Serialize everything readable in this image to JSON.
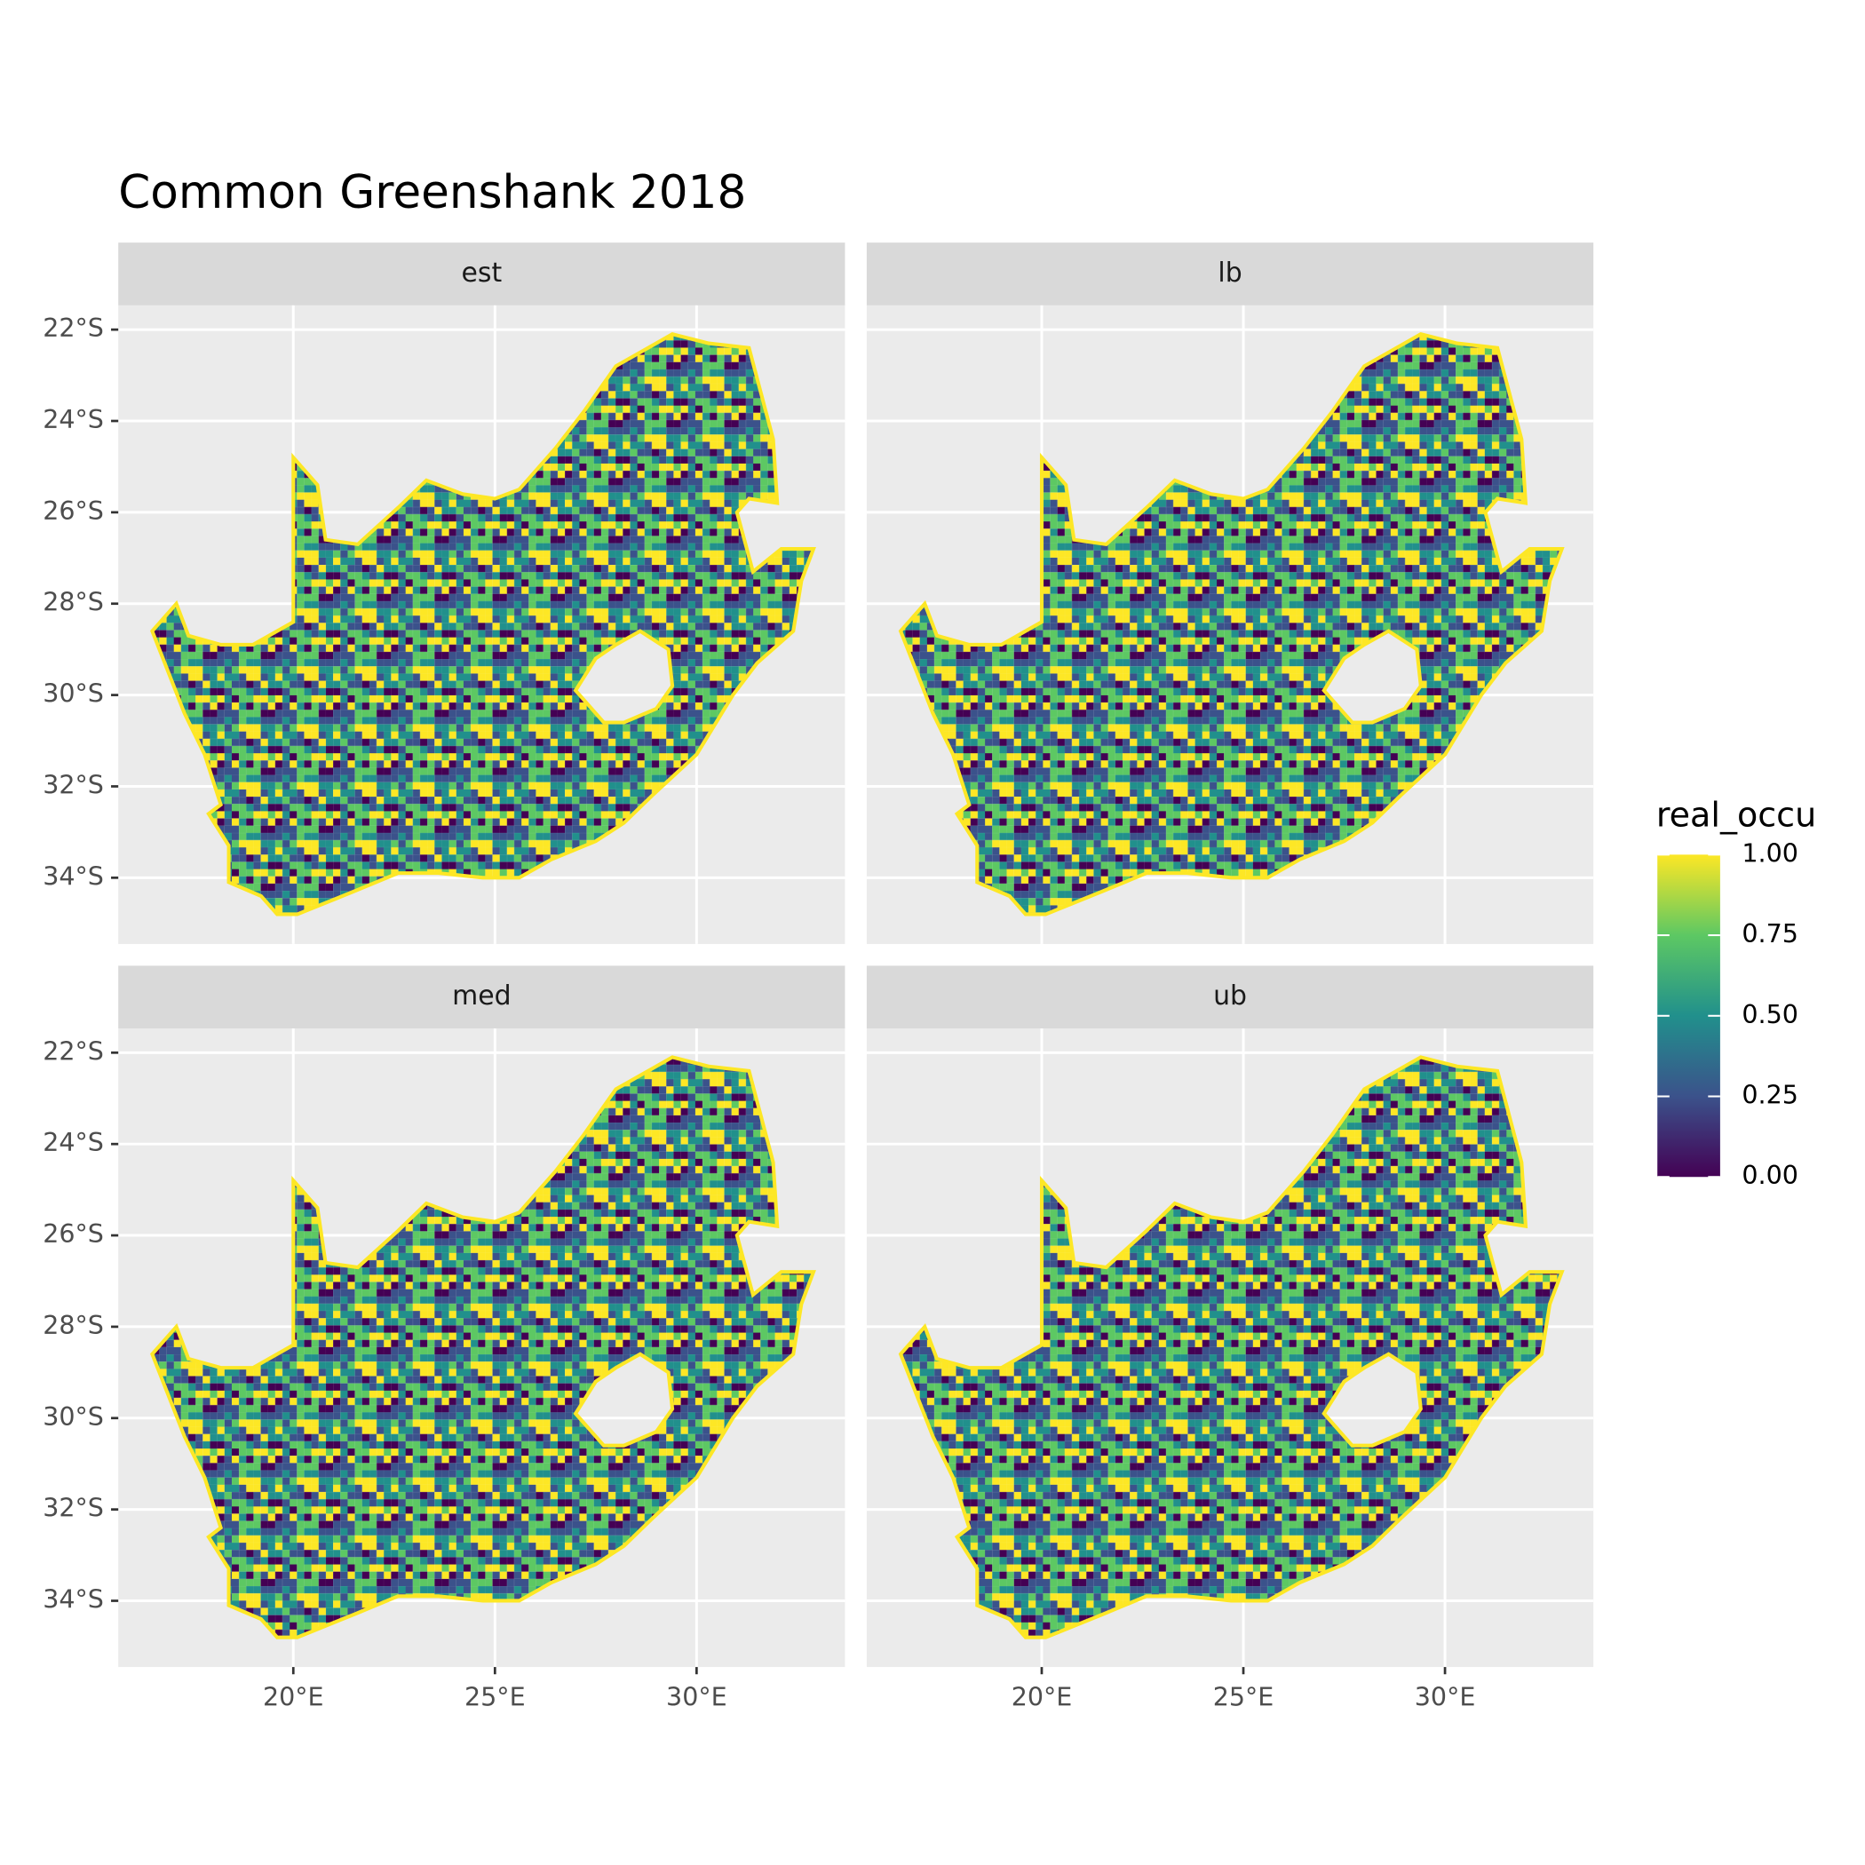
{
  "chart_data": {
    "type": "raster_map",
    "title": "Common Greenshank 2018",
    "facets": [
      "est",
      "lb",
      "med",
      "ub"
    ],
    "xlim": [
      15.66,
      33.68
    ],
    "ylim": [
      -35.45,
      -21.47
    ],
    "xticks": [
      {
        "value": 20,
        "label": "20°E"
      },
      {
        "value": 25,
        "label": "25°E"
      },
      {
        "value": 30,
        "label": "30°E"
      }
    ],
    "yticks": [
      {
        "value": -22,
        "label": "22°S"
      },
      {
        "value": -24,
        "label": "24°S"
      },
      {
        "value": -26,
        "label": "26°S"
      },
      {
        "value": -28,
        "label": "28°S"
      },
      {
        "value": -30,
        "label": "30°S"
      },
      {
        "value": -32,
        "label": "32°S"
      },
      {
        "value": -34,
        "label": "34°S"
      }
    ],
    "grid": true,
    "legend": {
      "title": "real_occu",
      "lim": [
        0,
        1
      ],
      "colors": [
        "#440154",
        "#3b528b",
        "#21908c",
        "#5dc863",
        "#fde725"
      ],
      "ticks": [
        {
          "value": 0,
          "label": "0.00"
        },
        {
          "value": 0.25,
          "label": "0.25"
        },
        {
          "value": 0.5,
          "label": "0.50"
        },
        {
          "value": 0.75,
          "label": "0.75"
        },
        {
          "value": 1,
          "label": "1.00"
        }
      ]
    }
  }
}
